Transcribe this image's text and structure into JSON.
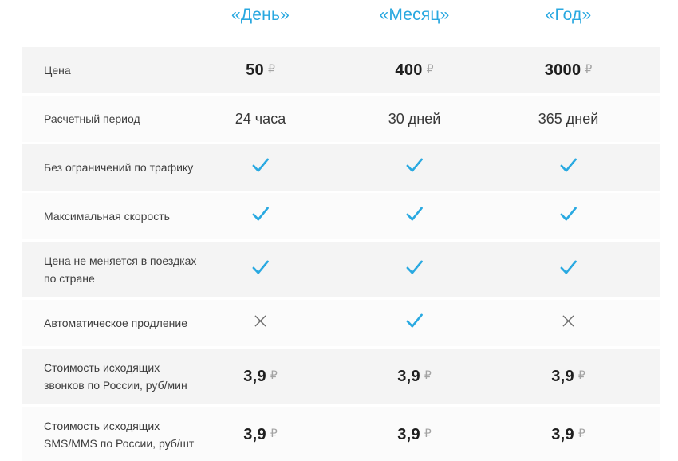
{
  "table": {
    "columns": [
      {
        "label": "«День»"
      },
      {
        "label": "«Месяц»"
      },
      {
        "label": "«Год»"
      }
    ],
    "currency_symbol": "₽",
    "colors": {
      "header_blue": "#29a8e0",
      "check_blue": "#29a9e1",
      "cross_gray": "#6f6f6f",
      "row_gray": "#f4f4f4",
      "row_light": "#fbfbfb"
    },
    "icons": {
      "check": "check-icon",
      "cross": "cross-icon"
    },
    "rows": [
      {
        "label": "Цена",
        "type": "price",
        "values": [
          "50",
          "400",
          "3000"
        ]
      },
      {
        "label": "Расчетный период",
        "type": "text",
        "values": [
          "24 часа",
          "30 дней",
          "365 дней"
        ]
      },
      {
        "label": "Без ограничений по трафику",
        "type": "bool",
        "values": [
          "check",
          "check",
          "check"
        ]
      },
      {
        "label": "Максимальная скорость",
        "type": "bool",
        "values": [
          "check",
          "check",
          "check"
        ]
      },
      {
        "label": "Цена не меняется в поездках по стране",
        "type": "bool",
        "values": [
          "check",
          "check",
          "check"
        ]
      },
      {
        "label": "Автоматическое продление",
        "type": "bool",
        "values": [
          "cross",
          "check",
          "cross"
        ]
      },
      {
        "label": "Стоимость исходящих звонков по России, руб/мин",
        "type": "price",
        "values": [
          "3,9",
          "3,9",
          "3,9"
        ]
      },
      {
        "label": "Стоимость исходящих SMS/MMS по России, руб/шт",
        "type": "price",
        "values": [
          "3,9",
          "3,9",
          "3,9"
        ]
      }
    ]
  }
}
